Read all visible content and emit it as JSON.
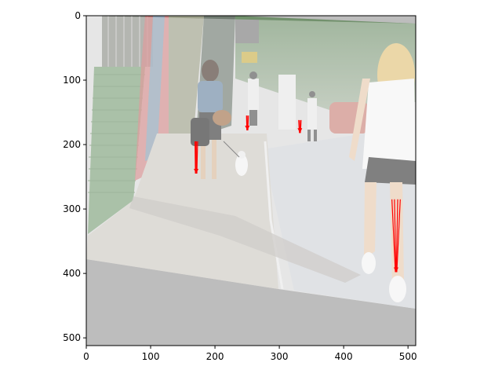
{
  "plot": {
    "x_ticks": [
      0,
      100,
      200,
      300,
      400,
      500
    ],
    "y_ticks": [
      0,
      100,
      200,
      300,
      400,
      500
    ],
    "x_range": [
      0,
      512
    ],
    "y_range": [
      512,
      0
    ]
  },
  "photo": {
    "scene": "street sidewalk with pedestrians",
    "warp_fill_color": "#bdbdbd",
    "overlay_tint": "#ffffff"
  },
  "arrow_groups": [
    {
      "x": [
        169,
        170,
        171,
        173
      ],
      "y_top": 195,
      "y_bottom": 245
    },
    {
      "x": [
        249,
        250,
        252
      ],
      "y_top": 155,
      "y_bottom": 178
    },
    {
      "x": [
        330,
        332,
        334
      ],
      "y_top": 162,
      "y_bottom": 182
    },
    {
      "x": [
        475,
        479,
        484,
        488
      ],
      "y_top": 285,
      "y_bottom": 398
    }
  ],
  "colors": {
    "arrow": "#ff0000",
    "axis": "#000000"
  }
}
